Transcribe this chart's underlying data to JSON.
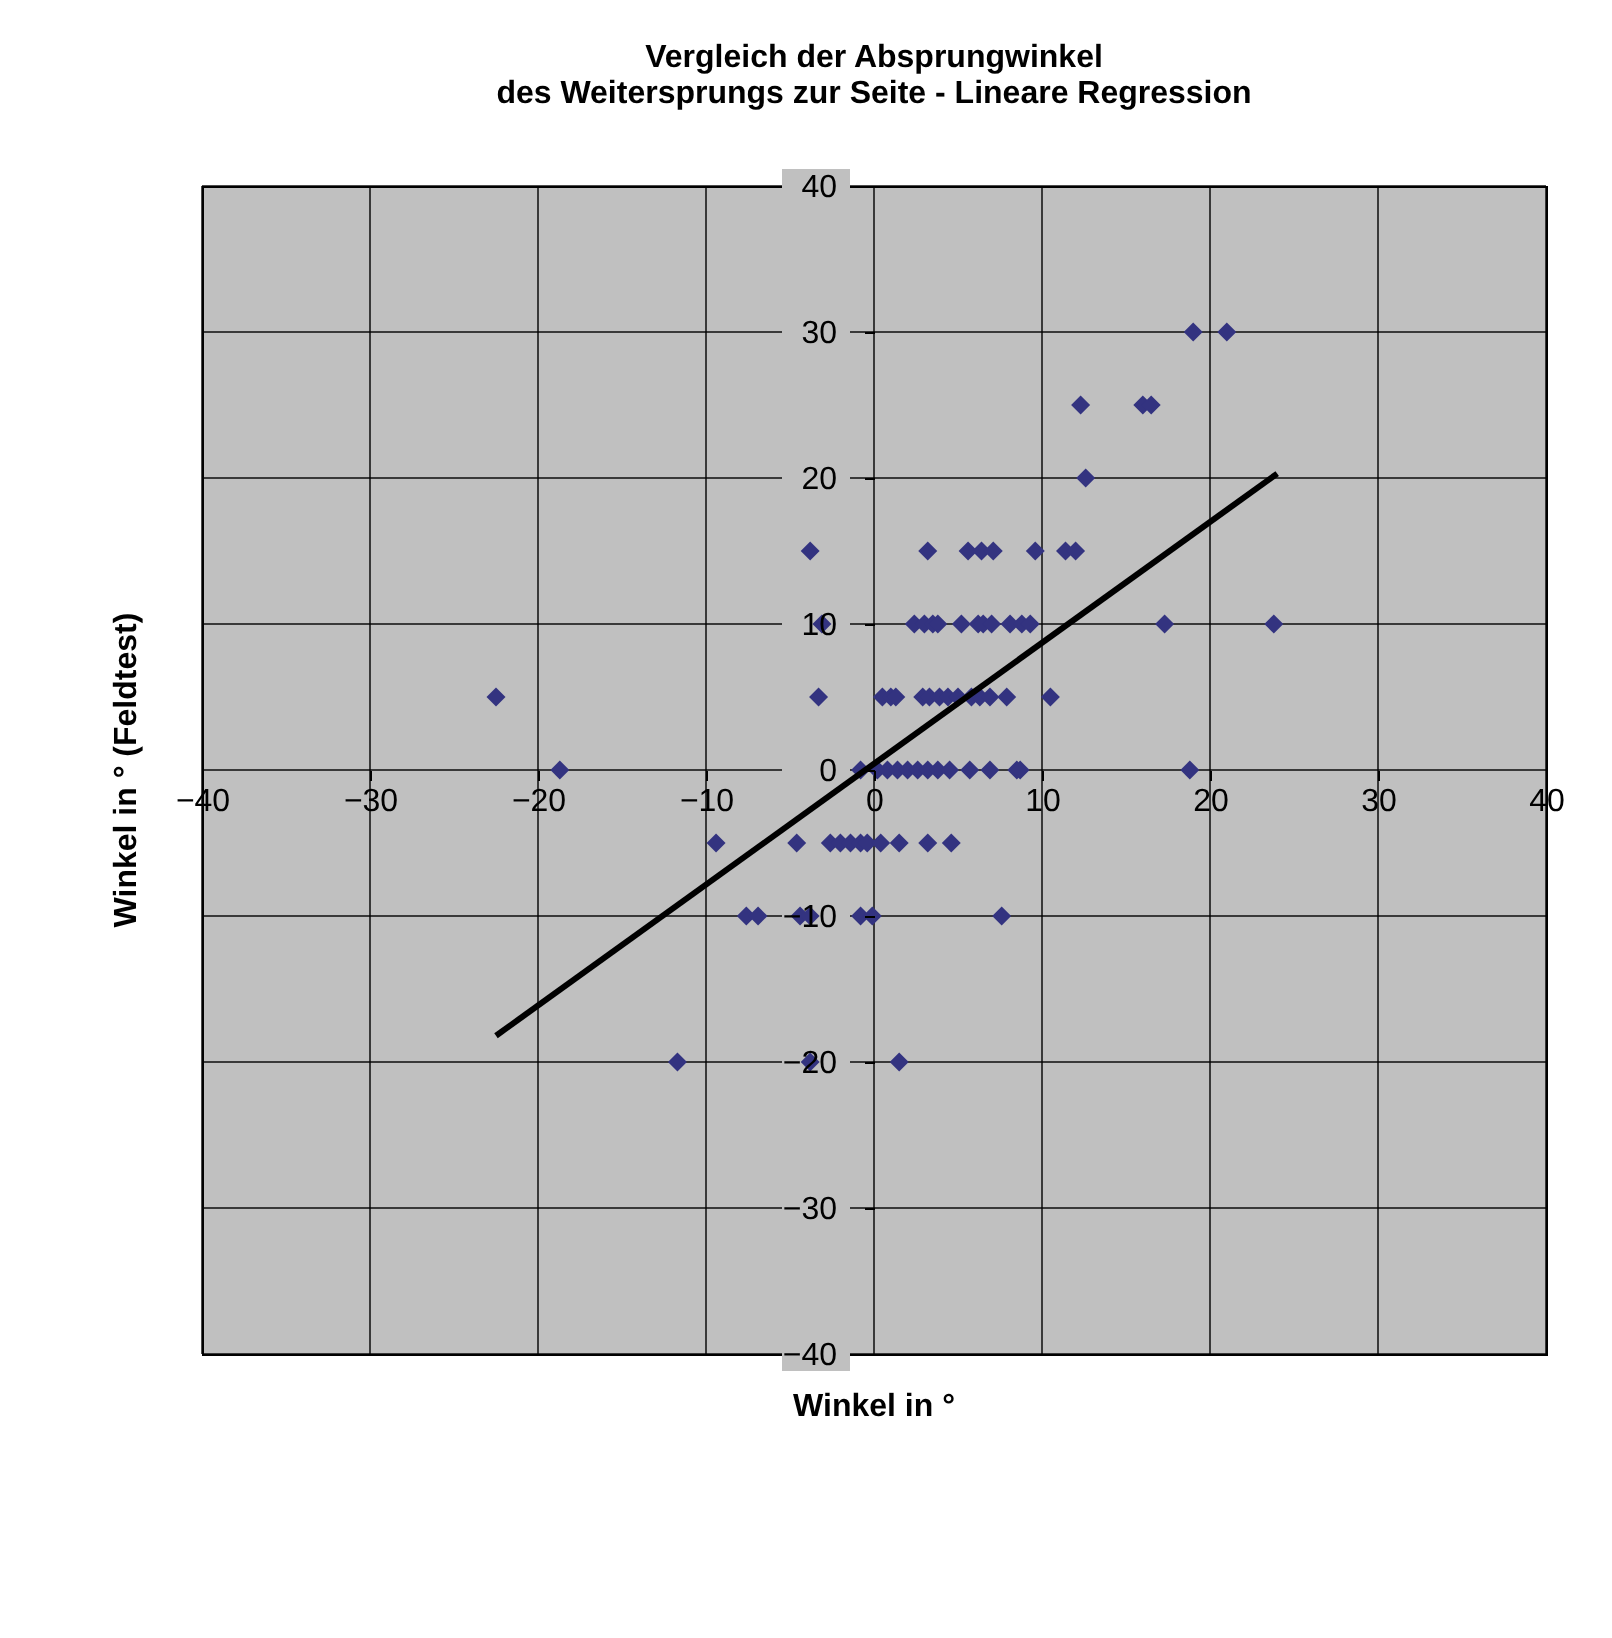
{
  "chart_data": {
    "type": "scatter",
    "title": [
      "Vergleich der Absprungwinkel",
      "des Weitersprungs zur Seite - Lineare Regression"
    ],
    "xlabel": "Winkel in °",
    "ylabel": "Winkel in ° (Feldtest)",
    "xlim": [
      -40,
      40
    ],
    "ylim": [
      -40,
      40
    ],
    "xticks": [
      -40,
      -30,
      -20,
      -10,
      0,
      10,
      20,
      30,
      40
    ],
    "yticks": [
      -40,
      -30,
      -20,
      -10,
      0,
      10,
      20,
      30,
      40
    ],
    "grid": true,
    "legend": false,
    "marker": "diamond",
    "series": [
      {
        "color": "#333380",
        "x": [
          19,
          21,
          12.3,
          16,
          16.5,
          12.6,
          -3.8,
          3.2,
          5.6,
          6.4,
          7.1,
          9.6,
          11.4,
          12,
          17.3,
          23.8,
          -3.1,
          2.4,
          3,
          3.5,
          3.8,
          5.2,
          6.2,
          6.5,
          7,
          8.1,
          8.8,
          9.3,
          -3.3,
          -22.5,
          0.5,
          1,
          1.3,
          2.9,
          3.3,
          3.9,
          4.4,
          5,
          5.8,
          6.3,
          6.9,
          7.9,
          10.5,
          -18.7,
          18.8,
          -0.8,
          0.2,
          0.8,
          1.4,
          2,
          2.6,
          3.2,
          3.8,
          4.5,
          5.7,
          6.9,
          8.5,
          8.7,
          -9.4,
          -4.6,
          -2.6,
          -2,
          -1.4,
          -0.8,
          -0.4,
          0.4,
          1.5,
          3.2,
          4.6,
          -7.6,
          -6.9,
          -4.4,
          -3.8,
          -0.8,
          -0.1,
          7.6,
          -11.7,
          1.5,
          -3.8
        ],
        "values": [
          30,
          30,
          25,
          25,
          25,
          20,
          15,
          15,
          15,
          15,
          15,
          15,
          15,
          15,
          10,
          10,
          10,
          10,
          10,
          10,
          10,
          10,
          10,
          10,
          10,
          10,
          10,
          10,
          5,
          5,
          5,
          5,
          5,
          5,
          5,
          5,
          5,
          5,
          5,
          5,
          5,
          5,
          5,
          0,
          0,
          0,
          0,
          0,
          0,
          0,
          0,
          0,
          0,
          0,
          0,
          0,
          0,
          0,
          -5,
          -5,
          -5,
          -5,
          -5,
          -5,
          -5,
          -5,
          -5,
          -5,
          -5,
          -10,
          -10,
          -10,
          -10,
          -10,
          -10,
          -10,
          -20,
          -20,
          -20
        ]
      },
      {
        "type": "line",
        "color": "#000000",
        "line_style": "solid",
        "marker": "none",
        "x": [
          -22.5,
          24
        ],
        "values": [
          -18.2,
          20.3
        ]
      }
    ]
  }
}
